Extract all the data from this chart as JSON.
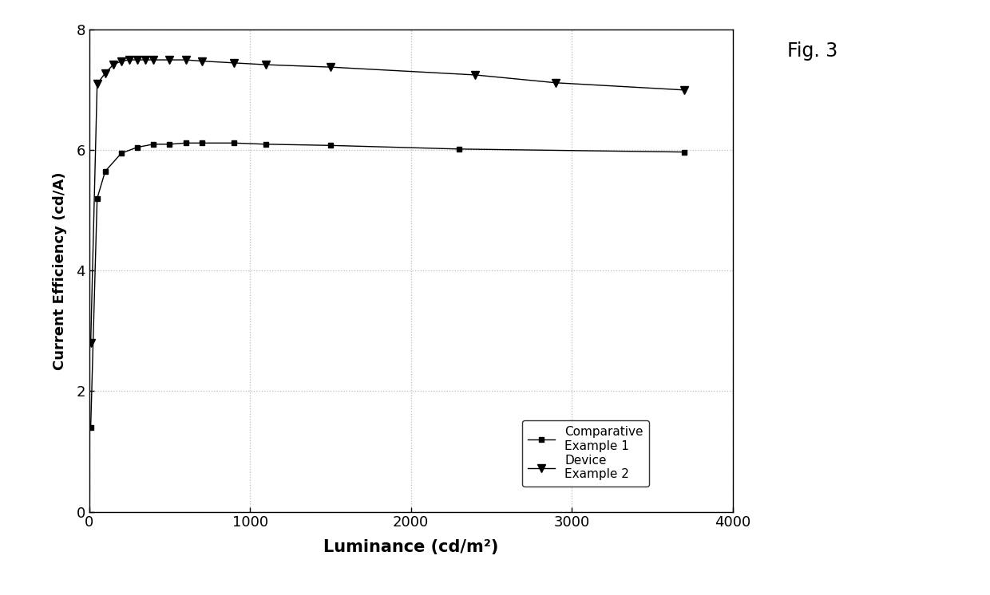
{
  "title": "Fig. 3",
  "xlabel": "Luminance (cd/m²)",
  "ylabel": "Current Efficiency (cd/A)",
  "xlim": [
    0,
    4000
  ],
  "ylim": [
    0,
    8
  ],
  "xticks": [
    0,
    1000,
    2000,
    3000,
    4000
  ],
  "yticks": [
    0,
    2,
    4,
    6,
    8
  ],
  "series1_label_line1": "Comparative",
  "series1_label_line2": "Example 1",
  "series2_label_line1": "Device",
  "series2_label_line2": "Example 2",
  "series1_x": [
    10,
    50,
    100,
    200,
    300,
    400,
    500,
    600,
    700,
    900,
    1100,
    1500,
    2300,
    3700
  ],
  "series1_y": [
    1.4,
    5.2,
    5.65,
    5.95,
    6.05,
    6.1,
    6.1,
    6.12,
    6.12,
    6.12,
    6.1,
    6.08,
    6.02,
    5.97
  ],
  "series2_x": [
    10,
    50,
    100,
    150,
    200,
    250,
    300,
    350,
    400,
    500,
    600,
    700,
    900,
    1100,
    1500,
    2400,
    2900,
    3700
  ],
  "series2_y": [
    2.8,
    7.1,
    7.28,
    7.42,
    7.48,
    7.5,
    7.5,
    7.5,
    7.5,
    7.5,
    7.5,
    7.48,
    7.45,
    7.42,
    7.38,
    7.25,
    7.12,
    7.0
  ],
  "line_color": "#000000",
  "marker_color": "#000000",
  "bg_color": "#ffffff",
  "grid_color": "#bbbbbb",
  "figsize": [
    12.4,
    7.46
  ],
  "dpi": 100
}
